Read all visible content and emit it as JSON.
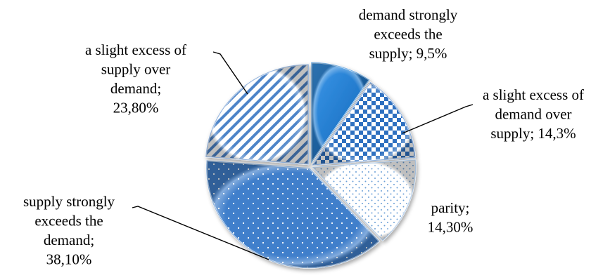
{
  "chart_data": {
    "type": "pie",
    "title": "",
    "slices": [
      {
        "name": "demand strongly exceeds the supply",
        "value": 9.5,
        "label_lines": [
          "demand strongly",
          "exceeds the",
          "supply; 9,5%"
        ],
        "pattern": "solid",
        "color": "#1a7ad0"
      },
      {
        "name": "a slight excess of demand over supply",
        "value": 14.3,
        "label_lines": [
          "a slight excess of",
          "demand over",
          "supply; 14,3%"
        ],
        "pattern": "checker",
        "color": "#3a78c8"
      },
      {
        "name": "parity",
        "value": 14.3,
        "label_lines": [
          "parity;",
          "14,30%"
        ],
        "pattern": "dots",
        "color": "#7aa8d8"
      },
      {
        "name": "supply strongly exceeds the demand",
        "value": 38.1,
        "label_lines": [
          "supply strongly",
          "exceeds the",
          "demand;",
          "38,10%"
        ],
        "pattern": "dots-dense",
        "color": "#3d7cc4"
      },
      {
        "name": "a slight excess of supply over demand",
        "value": 23.8,
        "label_lines": [
          "a slight excess of",
          "supply over",
          "demand;",
          "23,80%"
        ],
        "pattern": "diagonal",
        "color": "#4a80c4"
      }
    ],
    "legend": "none",
    "colors": {
      "text": "#000000",
      "leader": "#000000"
    }
  }
}
